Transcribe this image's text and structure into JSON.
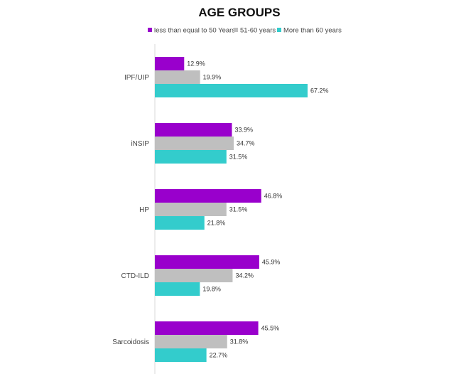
{
  "chart_data": {
    "type": "bar",
    "orientation": "horizontal",
    "title": "AGE GROUPS",
    "categories": [
      "IPF/UIP",
      "iNSIP",
      "HP",
      "CTD-ILD",
      "Sarcoidosis"
    ],
    "series": [
      {
        "name": "less than equal to 50 Years",
        "color": "#9900CC",
        "values": [
          12.9,
          33.9,
          46.8,
          45.9,
          45.5
        ],
        "labels": [
          "12.9%",
          "33.9%",
          "46.8%",
          "45.9%",
          "45.5%"
        ]
      },
      {
        "name": "51-60 years",
        "color": "#BFBFBF",
        "values": [
          19.9,
          34.7,
          31.5,
          34.2,
          31.8
        ],
        "labels": [
          "19.9%",
          "34.7%",
          "31.5%",
          "34.2%",
          "31.8%"
        ]
      },
      {
        "name": "More than 60 years",
        "color": "#33CCCC",
        "values": [
          67.2,
          31.5,
          21.8,
          19.8,
          22.7
        ],
        "labels": [
          "67.2%",
          "31.5%",
          "21.8%",
          "19.8%",
          "22.7%"
        ]
      }
    ],
    "xlim": [
      0,
      100
    ],
    "grid": false,
    "legend_position": "top"
  }
}
